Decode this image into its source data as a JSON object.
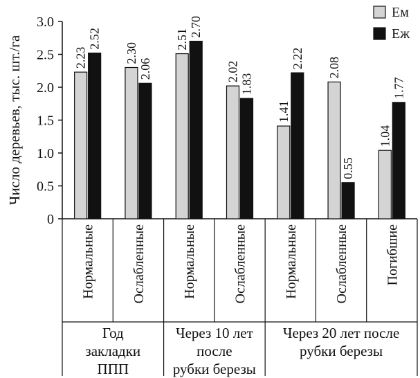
{
  "chart_data": {
    "type": "bar",
    "ylabel": "Число деревьев, тыс. шт./га",
    "ylim": [
      0,
      3.0
    ],
    "yticks": [
      "0",
      "0.5",
      "1.0",
      "1.5",
      "2.0",
      "2.5",
      "3.0"
    ],
    "categories": [
      "Нормальные",
      "Ослабленные",
      "Нормальные",
      "Ослабленные",
      "Нормальные",
      "Ослабленные",
      "Погибшие"
    ],
    "groups": [
      {
        "lines": [
          "Год",
          "закладки",
          "ППП"
        ],
        "span": [
          0,
          1
        ]
      },
      {
        "lines": [
          "Через 10 лет",
          "после",
          "рубки березы"
        ],
        "span": [
          2,
          3
        ]
      },
      {
        "lines": [
          "Через 20 лет после",
          "рубки березы"
        ],
        "span": [
          4,
          6
        ]
      }
    ],
    "series": [
      {
        "name": "Ем",
        "color": "#d4d4d4",
        "values": [
          2.23,
          2.3,
          2.51,
          2.02,
          1.41,
          2.08,
          1.04
        ],
        "labels": [
          "2.23",
          "2.30",
          "2.51",
          "2.02",
          "1.41",
          "2.08",
          "1.04"
        ]
      },
      {
        "name": "Еж",
        "color": "#111111",
        "values": [
          2.52,
          2.06,
          2.7,
          1.83,
          2.22,
          0.55,
          1.77
        ],
        "labels": [
          "2.52",
          "2.06",
          "2.70",
          "1.83",
          "2.22",
          "0.55",
          "1.77"
        ]
      }
    ],
    "legend": "top-right",
    "grid": false
  }
}
